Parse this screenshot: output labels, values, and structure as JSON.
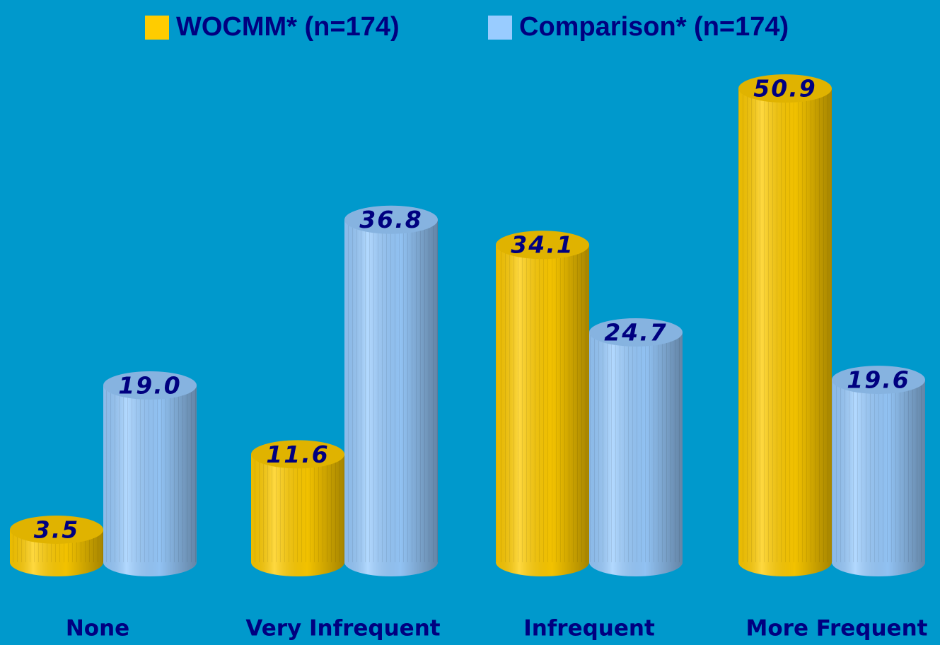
{
  "chart_data": {
    "type": "bar",
    "categories": [
      "None",
      "Very Infrequent",
      "Infrequent",
      "More Frequent"
    ],
    "series": [
      {
        "name": "WOCMM* (n=174)",
        "color": "#ffcc00",
        "values": [
          3.5,
          11.6,
          34.1,
          50.9
        ],
        "value_labels": [
          "3.5",
          "11.6",
          "34.1",
          "50.9"
        ]
      },
      {
        "name": "Comparison* (n=174)",
        "color": "#99ccff",
        "values": [
          19,
          36.8,
          24.7,
          19.6
        ],
        "value_labels": [
          "19.0",
          "36.8",
          "24.7",
          "19.6"
        ]
      }
    ],
    "legend": "top"
  }
}
